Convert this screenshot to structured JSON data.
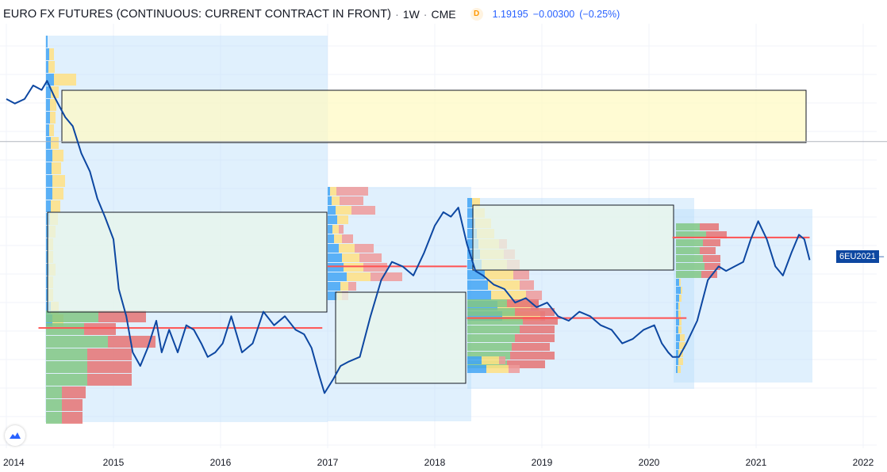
{
  "header": {
    "symbol_title": "EURO FX FUTURES (CONTINUOUS: CURRENT CONTRACT IN FRONT)",
    "interval": "1W",
    "exchange": "CME",
    "data_badge": "D",
    "last_price": "1.19195",
    "change": "−0.00300",
    "change_pct": "(−0.25%)"
  },
  "price_tag": {
    "label": "6EU2021"
  },
  "chart_data": {
    "type": "line",
    "title": "EURO FX FUTURES (CONTINUOUS: CURRENT CONTRACT IN FRONT)",
    "xlabel": "",
    "ylabel": "",
    "x_ticks": [
      "2014",
      "2015",
      "2016",
      "2017",
      "2018",
      "2019",
      "2020",
      "2021",
      "2022"
    ],
    "xlim": [
      2014.0,
      2022.2
    ],
    "ylim": [
      1.02,
      1.44
    ],
    "y_tick_labels": "hidden",
    "grid": true,
    "series": [
      {
        "color": "#0d47a1",
        "x": [
          2014.0,
          2014.08,
          2014.17,
          2014.25,
          2014.33,
          2014.38,
          2014.45,
          2014.55,
          2014.62,
          2014.7,
          2014.78,
          2014.85,
          2014.92,
          2015.0,
          2015.05,
          2015.12,
          2015.18,
          2015.25,
          2015.32,
          2015.4,
          2015.45,
          2015.52,
          2015.6,
          2015.68,
          2015.75,
          2015.82,
          2015.88,
          2015.95,
          2016.02,
          2016.1,
          2016.2,
          2016.3,
          2016.4,
          2016.5,
          2016.6,
          2016.7,
          2016.78,
          2016.85,
          2016.92,
          2016.97,
          2017.05,
          2017.12,
          2017.2,
          2017.3,
          2017.4,
          2017.5,
          2017.6,
          2017.7,
          2017.8,
          2017.9,
          2018.0,
          2018.08,
          2018.15,
          2018.22,
          2018.3,
          2018.38,
          2018.45,
          2018.55,
          2018.65,
          2018.75,
          2018.85,
          2018.95,
          2019.05,
          2019.15,
          2019.25,
          2019.35,
          2019.45,
          2019.55,
          2019.65,
          2019.75,
          2019.85,
          2019.95,
          2020.05,
          2020.12,
          2020.18,
          2020.22,
          2020.28,
          2020.35,
          2020.45,
          2020.55,
          2020.65,
          2020.72,
          2020.8,
          2020.88,
          2020.95,
          2021.02,
          2021.1,
          2021.18,
          2021.25,
          2021.33,
          2021.4,
          2021.45,
          2021.5
        ],
        "y": [
          1.37,
          1.365,
          1.37,
          1.385,
          1.38,
          1.39,
          1.372,
          1.35,
          1.34,
          1.31,
          1.29,
          1.26,
          1.24,
          1.215,
          1.16,
          1.13,
          1.09,
          1.075,
          1.095,
          1.125,
          1.09,
          1.115,
          1.09,
          1.12,
          1.115,
          1.1,
          1.085,
          1.09,
          1.1,
          1.13,
          1.09,
          1.1,
          1.135,
          1.12,
          1.13,
          1.115,
          1.11,
          1.095,
          1.065,
          1.045,
          1.06,
          1.075,
          1.08,
          1.085,
          1.13,
          1.17,
          1.19,
          1.185,
          1.175,
          1.2,
          1.23,
          1.245,
          1.24,
          1.25,
          1.21,
          1.18,
          1.175,
          1.165,
          1.16,
          1.145,
          1.15,
          1.14,
          1.145,
          1.13,
          1.125,
          1.135,
          1.13,
          1.12,
          1.115,
          1.1,
          1.105,
          1.115,
          1.12,
          1.1,
          1.09,
          1.085,
          1.085,
          1.1,
          1.125,
          1.17,
          1.185,
          1.18,
          1.185,
          1.19,
          1.215,
          1.235,
          1.215,
          1.185,
          1.175,
          1.2,
          1.22,
          1.215,
          1.192
        ]
      }
    ],
    "horizontal_lines": [
      {
        "color": "#ff5252",
        "x": [
          2014.3,
          2016.95
        ],
        "y": 1.117
      },
      {
        "color": "#ff5252",
        "x": [
          2017.0,
          2018.3
        ],
        "y": 1.185
      },
      {
        "color": "#ff5252",
        "x": [
          2018.3,
          2020.35
        ],
        "y": 1.128
      },
      {
        "color": "#ff5252",
        "x": [
          2020.22,
          2021.5
        ],
        "y": 1.217
      }
    ],
    "gray_line": {
      "color": "#b2b5be",
      "y": 1.323
    }
  }
}
